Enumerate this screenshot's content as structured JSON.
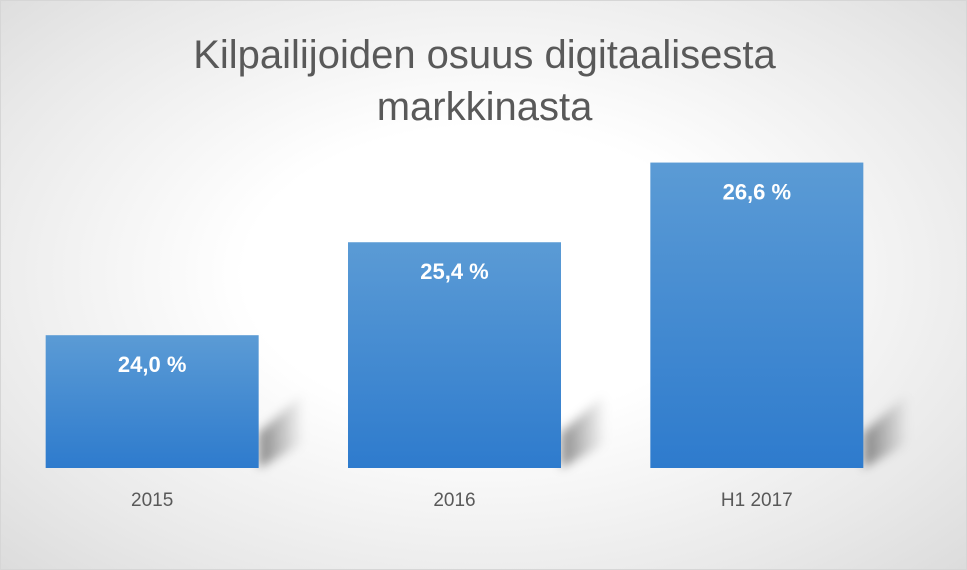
{
  "chart_data": {
    "type": "bar",
    "title_lines": [
      "Kilpailijoiden osuus digitaalisesta",
      "markkinasta"
    ],
    "categories": [
      "2015",
      "2016",
      "H1 2017"
    ],
    "values": [
      24.0,
      25.4,
      26.6
    ],
    "data_labels": [
      "24,0 %",
      "25,4 %",
      "26,6 %"
    ],
    "xlabel": "",
    "ylabel": "",
    "ylim": [
      22.0,
      27.0
    ],
    "y_axis_visible": false,
    "grid": false,
    "legend": "none",
    "colors": {
      "bar_top": "#5b9bd5",
      "bar_bottom": "#2e7bcd",
      "label_text": "#ffffff",
      "axis_text": "#595959"
    }
  }
}
